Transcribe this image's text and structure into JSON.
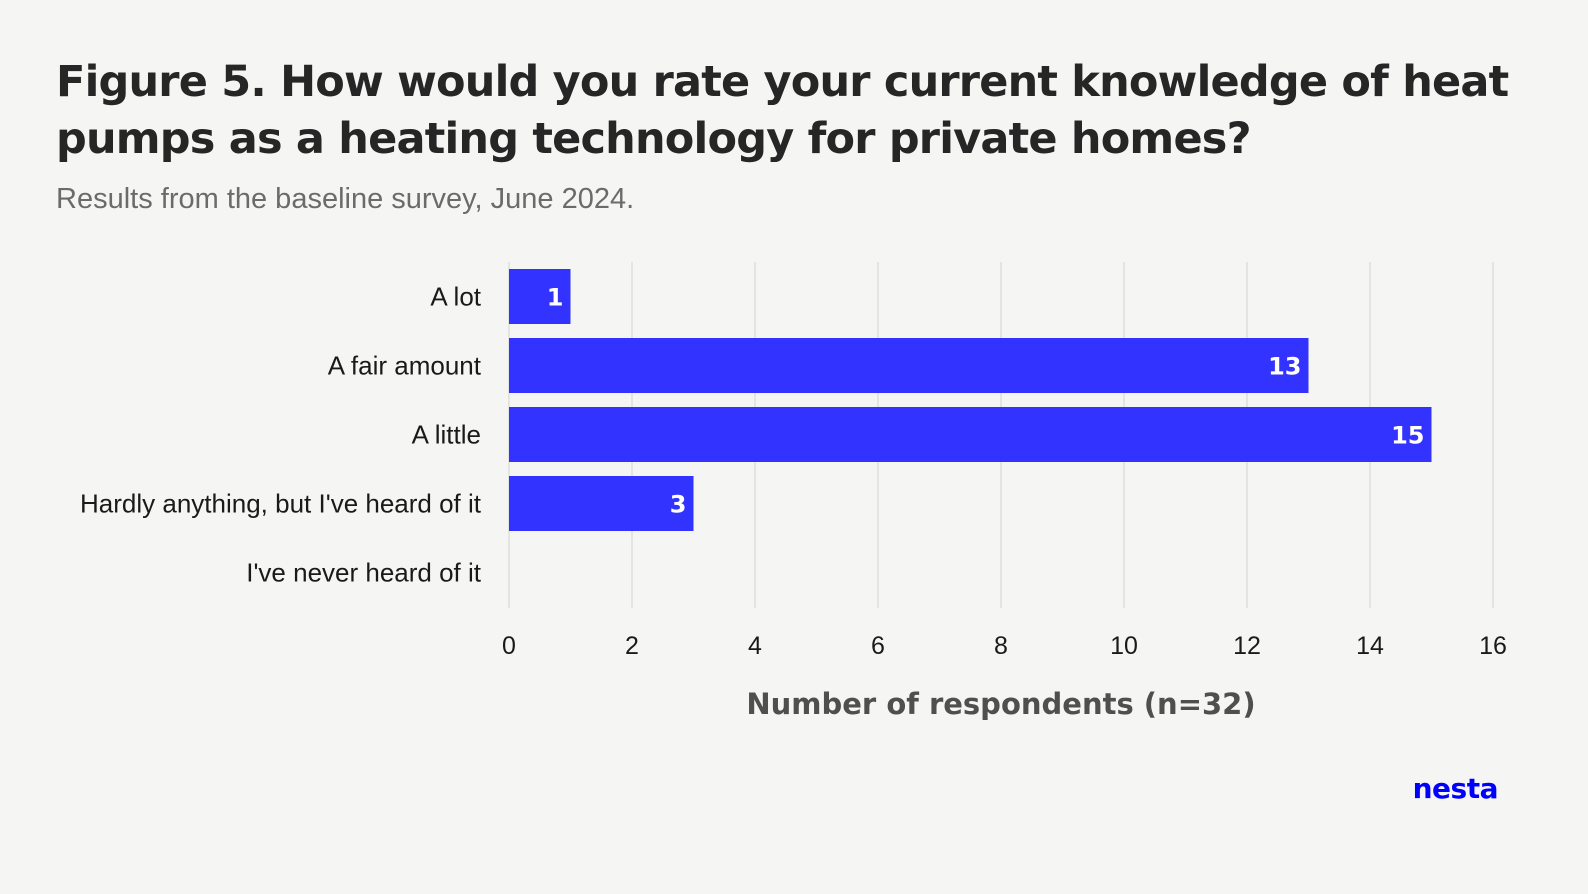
{
  "title": "Figure 5. How would you rate your current knowledge of heat pumps as a heating technology for private homes?",
  "subtitle": "Results from the baseline survey, June 2024.",
  "logo_text": "nesta",
  "colors": {
    "bar": "#3333ff",
    "grid": "#e4e5e3",
    "background": "#f5f6f4",
    "logo": "#0000ff"
  },
  "chart_data": {
    "type": "bar",
    "orientation": "horizontal",
    "categories": [
      "A lot",
      "A fair amount",
      "A little",
      "Hardly anything, but I've heard of it",
      "I've never heard of it"
    ],
    "values": [
      1,
      13,
      15,
      3,
      0
    ],
    "data_labels": [
      "1",
      "13",
      "15",
      "3",
      ""
    ],
    "xlabel": "Number of respondents (n=32)",
    "ylabel": "",
    "xlim": [
      0,
      16
    ],
    "xticks": [
      0,
      2,
      4,
      6,
      8,
      10,
      12,
      14,
      16
    ],
    "grid": "vertical",
    "legend": "none"
  }
}
